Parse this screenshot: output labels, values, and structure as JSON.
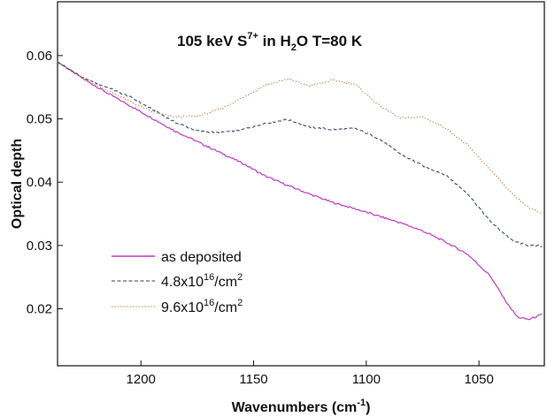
{
  "chart_data": {
    "type": "line",
    "title": "105 keV S7+ in H2O T=80 K",
    "title_parts": {
      "prefix": "105 keV S",
      "ion_charge": "7+",
      "middle": " in H",
      "water_sub": "2",
      "suffix": "O T=80 K"
    },
    "xlabel": "Wavenumbers (cm-1)",
    "xlabel_parts": {
      "base": "Wavenumbers (cm",
      "sup": "-1",
      "close": ")"
    },
    "ylabel": "Optical depth",
    "xlim": [
      1237,
      1021
    ],
    "ylim": [
      0.011,
      0.0685
    ],
    "x_reversed": true,
    "grid": false,
    "legend_position": "bottom-left",
    "xticks": [
      {
        "value": 1200,
        "label": "1200"
      },
      {
        "value": 1150,
        "label": "1150"
      },
      {
        "value": 1100,
        "label": "1100"
      },
      {
        "value": 1050,
        "label": "1050"
      }
    ],
    "yticks": [
      {
        "value": 0.02,
        "label": "0.02"
      },
      {
        "value": 0.03,
        "label": "0.03"
      },
      {
        "value": 0.04,
        "label": "0.04"
      },
      {
        "value": 0.05,
        "label": "0.05"
      },
      {
        "value": 0.06,
        "label": "0.06"
      }
    ],
    "series": [
      {
        "name": "as deposited",
        "legend": {
          "base": "as deposited",
          "sup": "",
          "tail": ""
        },
        "color": "#c03cc0",
        "style": "solid",
        "x": [
          1237,
          1225,
          1215,
          1205,
          1195,
          1185,
          1175,
          1165,
          1155,
          1145,
          1135,
          1125,
          1115,
          1105,
          1095,
          1085,
          1075,
          1065,
          1055,
          1045,
          1038,
          1033,
          1028,
          1022
        ],
        "y": [
          0.059,
          0.0562,
          0.0541,
          0.0521,
          0.0501,
          0.0481,
          0.0464,
          0.0447,
          0.043,
          0.041,
          0.0395,
          0.0381,
          0.0368,
          0.0358,
          0.0347,
          0.0336,
          0.0323,
          0.0306,
          0.0286,
          0.0252,
          0.0211,
          0.0187,
          0.0183,
          0.0191
        ]
      },
      {
        "name": "4.8x10^16/cm^2",
        "legend": {
          "base": "4.8x10",
          "sup": "16",
          "tail": "/cm",
          "sup2": "2"
        },
        "color": "#2b3a5c",
        "style": "dashed",
        "x": [
          1237,
          1225,
          1215,
          1205,
          1195,
          1185,
          1175,
          1165,
          1155,
          1145,
          1135,
          1125,
          1115,
          1105,
          1095,
          1085,
          1075,
          1065,
          1055,
          1045,
          1035,
          1028,
          1022
        ],
        "y": [
          0.059,
          0.0563,
          0.055,
          0.0535,
          0.0515,
          0.0495,
          0.0481,
          0.0478,
          0.0483,
          0.0493,
          0.0499,
          0.0487,
          0.0483,
          0.0485,
          0.047,
          0.0445,
          0.0426,
          0.0412,
          0.0382,
          0.0338,
          0.0307,
          0.03,
          0.0299
        ]
      },
      {
        "name": "9.6x10^16/cm^2",
        "legend": {
          "base": "9.6x10",
          "sup": "16",
          "tail": "/cm",
          "sup2": "2"
        },
        "color": "#b8784f",
        "style": "dotted",
        "x": [
          1237,
          1225,
          1215,
          1205,
          1195,
          1185,
          1175,
          1165,
          1155,
          1145,
          1135,
          1125,
          1115,
          1105,
          1095,
          1085,
          1075,
          1065,
          1055,
          1045,
          1035,
          1028,
          1022
        ],
        "y": [
          0.059,
          0.0562,
          0.0545,
          0.0528,
          0.0511,
          0.0503,
          0.0504,
          0.0515,
          0.0533,
          0.0553,
          0.0563,
          0.0552,
          0.0561,
          0.0555,
          0.0523,
          0.0501,
          0.0503,
          0.0486,
          0.0458,
          0.042,
          0.038,
          0.036,
          0.035
        ]
      }
    ]
  }
}
